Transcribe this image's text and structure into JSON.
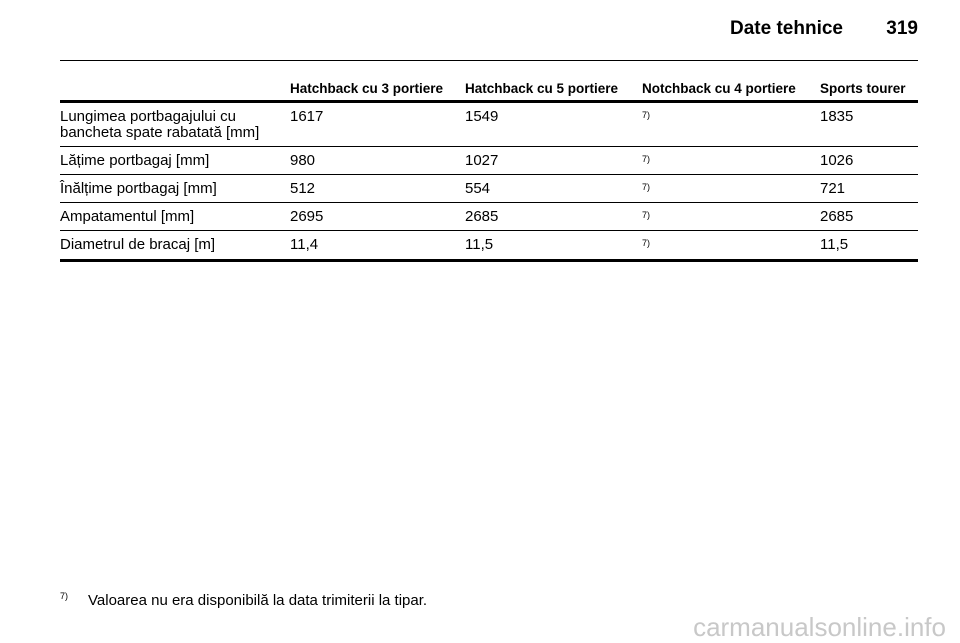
{
  "header": {
    "title": "Date tehnice",
    "page_number": "319"
  },
  "table": {
    "columns": [
      "Hatchback cu 3 portiere",
      "Hatchback cu 5 portiere",
      "Notchback cu 4 portiere",
      "Sports tourer"
    ],
    "rows": [
      {
        "label": "Lungimea portbagajului cu bancheta spate rabatată [mm]",
        "values": [
          "1617",
          "1549",
          "7)",
          "1835"
        ]
      },
      {
        "label": "Lățime portbagaj [mm]",
        "values": [
          "980",
          "1027",
          "7)",
          "1026"
        ]
      },
      {
        "label": "Înălțime portbagaj [mm]",
        "values": [
          "512",
          "554",
          "7)",
          "721"
        ]
      },
      {
        "label": "Ampatamentul [mm]",
        "values": [
          "2695",
          "2685",
          "7)",
          "2685"
        ]
      },
      {
        "label": "Diametrul de bracaj [m]",
        "values": [
          "11,4",
          "11,5",
          "7)",
          "11,5"
        ]
      }
    ]
  },
  "footnote": {
    "mark": "7)",
    "text": "Valoarea nu era disponibilă la data trimiterii la tipar."
  },
  "watermark": "carmanualsonline.info"
}
